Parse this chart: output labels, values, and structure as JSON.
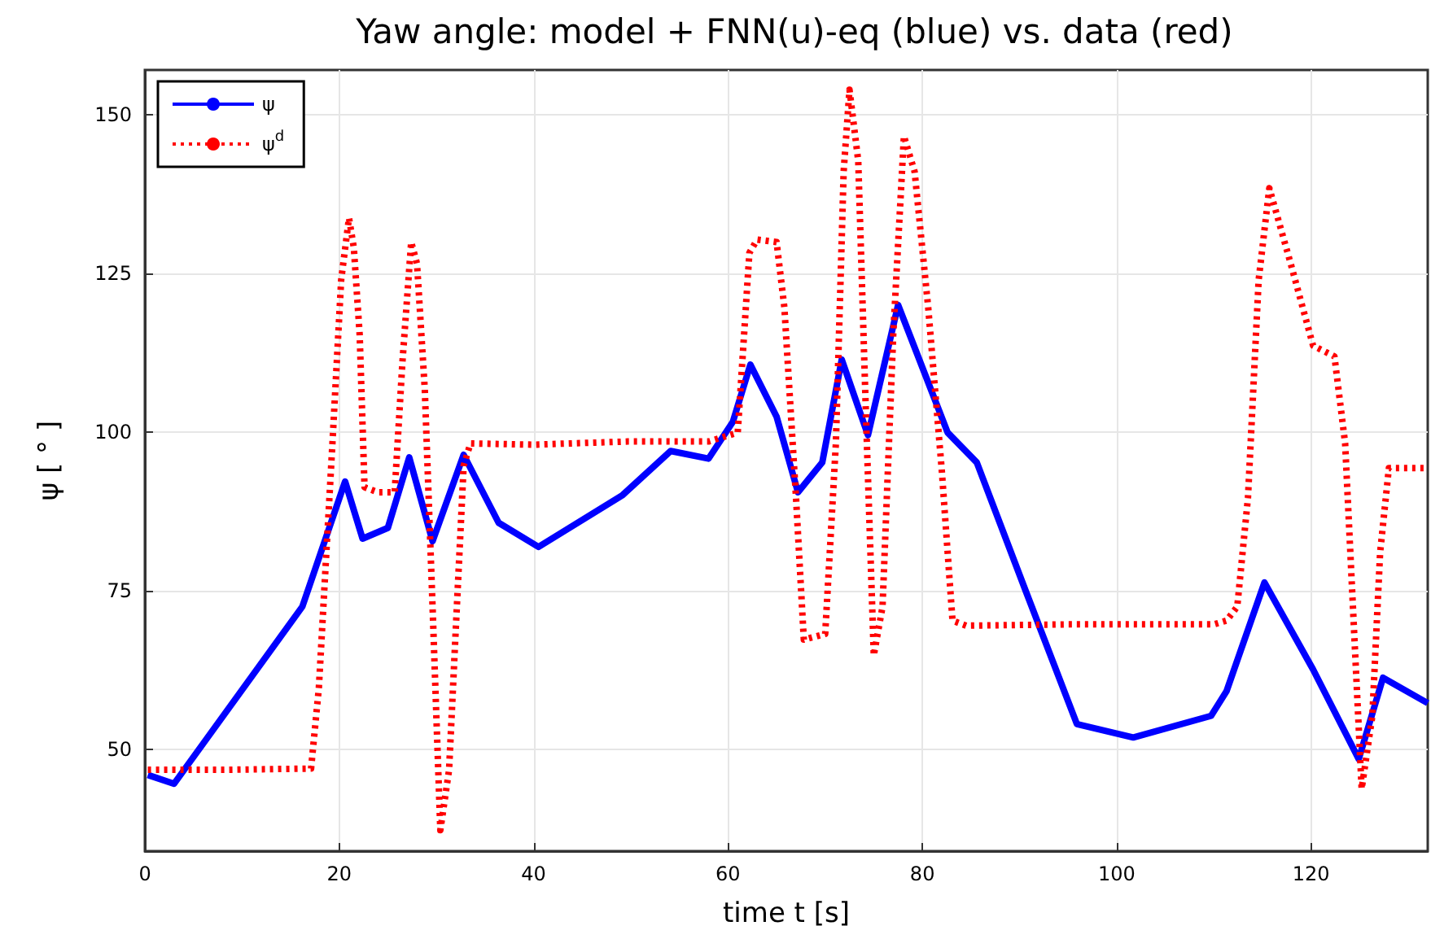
{
  "chart_data": {
    "type": "line",
    "title": "Yaw angle: model + FNN(u)-eq (blue) vs. data (red)",
    "xlabel": "time t [s]",
    "ylabel": "ψ [ ° ]",
    "xlim": [
      0,
      132
    ],
    "xticks": [
      0,
      20,
      40,
      60,
      80,
      100,
      120
    ],
    "ylim": [
      34,
      157
    ],
    "yticks": [
      50,
      75,
      100,
      125,
      150
    ],
    "grid": true,
    "legend": "top left",
    "marker": "none",
    "series": [
      {
        "name": "ψ",
        "color": "#0000ff",
        "line_style": "solid",
        "x": [
          0.3,
          3,
          16.2,
          20.6,
          22.4,
          25,
          27.2,
          29.6,
          32.8,
          36.4,
          40.5,
          49.1,
          54.1,
          58,
          60.5,
          62.3,
          65,
          67.2,
          69.7,
          71.7,
          74.4,
          77.5,
          82.6,
          85.6,
          90.6,
          95.9,
          101.7,
          109.7,
          111.3,
          115.2,
          120.2,
          124.9,
          127.4,
          132
        ],
        "values": [
          46,
          44.6,
          72.5,
          92.2,
          83.2,
          84.9,
          96,
          82.8,
          96.4,
          85.7,
          81.9,
          90,
          97,
          95.8,
          101.6,
          110.6,
          102.4,
          90.5,
          95.2,
          111.4,
          99.5,
          120,
          99.9,
          95.2,
          75.1,
          54,
          51.9,
          55.3,
          59.2,
          76.3,
          62.6,
          48.5,
          61.3,
          57.3
        ]
      },
      {
        "name": "ψ$^{d}$",
        "color": "#ff0000",
        "line_style": "dotted",
        "x": [
          0.3,
          8,
          17.1,
          17.9,
          19.3,
          20.2,
          21,
          21.5,
          22.1,
          22.6,
          24,
          25.7,
          26.5,
          27.4,
          28,
          28.8,
          29.6,
          30.4,
          31.3,
          32.1,
          32.8,
          33.5,
          40,
          49.7,
          58,
          61,
          62.2,
          63,
          65,
          65.8,
          67,
          67.8,
          70,
          71.1,
          71.9,
          72.5,
          73.4,
          74.2,
          75,
          75.9,
          77,
          78.1,
          79.2,
          80.6,
          82,
          83.1,
          84.5,
          95,
          110,
          111.3,
          112.4,
          113.5,
          114.6,
          115.7,
          117.9,
          120.2,
          122.4,
          123.5,
          124.3,
          125.2,
          126.3,
          127.1,
          128,
          132
        ],
        "values": [
          46.8,
          46.8,
          47,
          59.7,
          98.3,
          124,
          133.7,
          129,
          115.3,
          91.3,
          90.5,
          90.5,
          111,
          129.9,
          126.5,
          106.7,
          72.5,
          37.3,
          46.8,
          72.5,
          94.7,
          98.2,
          98,
          98.5,
          98.5,
          99.9,
          128.2,
          130.3,
          129.9,
          119.6,
          89.6,
          67.3,
          68.2,
          98.2,
          141,
          153.9,
          142.7,
          102.4,
          64.8,
          72.5,
          115.3,
          146.6,
          141,
          119.6,
          93.9,
          70.3,
          69.5,
          69.7,
          69.7,
          70.3,
          72.5,
          89.6,
          123.9,
          138.4,
          126.5,
          113.6,
          111.9,
          98.2,
          72.5,
          43.8,
          55.3,
          81,
          94.3,
          94.3
        ]
      }
    ]
  }
}
